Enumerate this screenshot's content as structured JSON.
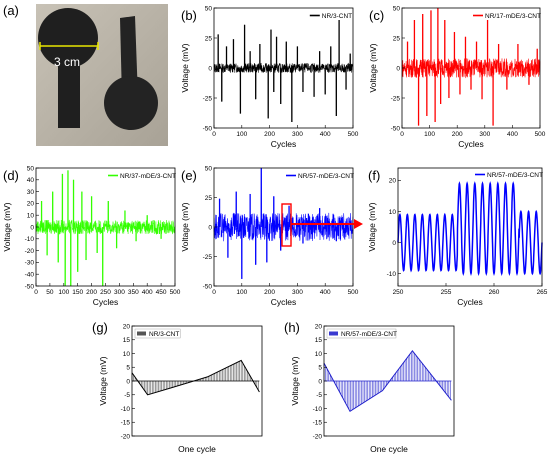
{
  "figure": {
    "photo": {
      "letter": "(a)",
      "scale_text": "3 cm",
      "colors": {
        "background": "#b9b3a7",
        "object": "#1f1f1f",
        "scale_line": "#e9e600"
      }
    },
    "signals": [
      {
        "letter": "(b)",
        "legend": "NR/3-CNT",
        "color": "#000000",
        "xlabel": "Cycles",
        "ylabel": "Voltage (mV)",
        "xlim": [
          0,
          500
        ],
        "ylim": [
          -50,
          50
        ],
        "xticks": [
          "0",
          "100",
          "200",
          "300",
          "400",
          "500"
        ],
        "yticks": [
          "-50",
          "-25",
          "0",
          "25",
          "50"
        ],
        "noise_amplitude": 4,
        "spikes": [
          [
            15,
            28
          ],
          [
            28,
            -28
          ],
          [
            45,
            18
          ],
          [
            70,
            24
          ],
          [
            95,
            -38
          ],
          [
            110,
            36
          ],
          [
            130,
            14
          ],
          [
            150,
            -26
          ],
          [
            165,
            20
          ],
          [
            195,
            -42
          ],
          [
            205,
            32
          ],
          [
            215,
            -20
          ],
          [
            225,
            26
          ],
          [
            240,
            -30
          ],
          [
            260,
            22
          ],
          [
            280,
            -45
          ],
          [
            300,
            18
          ],
          [
            320,
            -20
          ],
          [
            360,
            -24
          ],
          [
            380,
            14
          ],
          [
            400,
            -22
          ],
          [
            420,
            18
          ],
          [
            440,
            -40
          ],
          [
            450,
            44
          ],
          [
            475,
            -18
          ],
          [
            490,
            12
          ]
        ]
      },
      {
        "letter": "(c)",
        "legend": "NR/17-mDE/3-CNT",
        "color": "#ff0000",
        "xlabel": "Cycles",
        "ylabel": "Voltage (mV)",
        "xlim": [
          0,
          500
        ],
        "ylim": [
          -50,
          50
        ],
        "xticks": [
          "0",
          "100",
          "200",
          "300",
          "400",
          "500"
        ],
        "yticks": [
          "-50",
          "-25",
          "0",
          "25",
          "50"
        ],
        "noise_amplitude": 8,
        "spikes": [
          [
            20,
            22
          ],
          [
            45,
            40
          ],
          [
            60,
            -48
          ],
          [
            75,
            45
          ],
          [
            90,
            -40
          ],
          [
            105,
            48
          ],
          [
            120,
            -45
          ],
          [
            130,
            50
          ],
          [
            140,
            -30
          ],
          [
            155,
            40
          ],
          [
            170,
            -25
          ],
          [
            190,
            30
          ],
          [
            210,
            -22
          ],
          [
            230,
            26
          ],
          [
            250,
            -18
          ],
          [
            270,
            22
          ],
          [
            290,
            -26
          ],
          [
            310,
            40
          ],
          [
            330,
            -48
          ],
          [
            350,
            20
          ],
          [
            380,
            -18
          ],
          [
            420,
            20
          ],
          [
            460,
            -14
          ],
          [
            490,
            16
          ]
        ]
      },
      {
        "letter": "(d)",
        "legend": "NR/37-mDE/3-CNT",
        "color": "#33ff00",
        "xlabel": "Cycles",
        "ylabel": "Voltage (mV)",
        "xlim": [
          0,
          500
        ],
        "ylim": [
          -50,
          50
        ],
        "xticks": [
          "0",
          "50",
          "100",
          "150",
          "200",
          "250",
          "300",
          "350",
          "400",
          "450",
          "500"
        ],
        "yticks": [
          "-50",
          "-40",
          "-30",
          "-20",
          "-10",
          "0",
          "10",
          "20",
          "30",
          "40",
          "50"
        ],
        "noise_amplitude": 6,
        "spikes": [
          [
            20,
            22
          ],
          [
            40,
            -24
          ],
          [
            60,
            30
          ],
          [
            80,
            -30
          ],
          [
            95,
            45
          ],
          [
            105,
            -50
          ],
          [
            115,
            48
          ],
          [
            125,
            -50
          ],
          [
            135,
            40
          ],
          [
            150,
            -38
          ],
          [
            165,
            30
          ],
          [
            180,
            -28
          ],
          [
            200,
            26
          ],
          [
            220,
            -22
          ],
          [
            240,
            -50
          ],
          [
            260,
            22
          ],
          [
            290,
            -18
          ],
          [
            320,
            14
          ],
          [
            360,
            -12
          ],
          [
            400,
            10
          ],
          [
            450,
            -10
          ]
        ]
      },
      {
        "letter": "(e)",
        "legend": "NR/57-mDE/3-CNT",
        "color": "#0000ff",
        "xlabel": "Cycles",
        "ylabel": "Voltage (mV)",
        "xlim": [
          0,
          500
        ],
        "ylim": [
          -50,
          50
        ],
        "xticks": [
          "0",
          "100",
          "200",
          "300",
          "400",
          "500"
        ],
        "yticks": [
          "-50",
          "-25",
          "0",
          "25",
          "50"
        ],
        "noise_amplitude": 12,
        "spikes": [
          [
            20,
            24
          ],
          [
            50,
            -26
          ],
          [
            80,
            30
          ],
          [
            100,
            -44
          ],
          [
            130,
            28
          ],
          [
            150,
            -32
          ],
          [
            170,
            50
          ],
          [
            190,
            -30
          ],
          [
            215,
            26
          ],
          [
            240,
            -20
          ],
          [
            270,
            18
          ],
          [
            320,
            -14
          ],
          [
            380,
            16
          ],
          [
            440,
            -12
          ]
        ]
      }
    ],
    "zoom": {
      "letter": "(f)",
      "legend": "NR/57-mDE/3-CNT",
      "color": "#0000ff",
      "xlabel": "Cycles",
      "ylabel": "Voltage (mV)",
      "xlim": [
        250,
        265
      ],
      "ylim": [
        -14,
        24
      ],
      "xticks": [
        "250",
        "255",
        "260",
        "265"
      ],
      "xtick_values": [
        250,
        255,
        260,
        265
      ],
      "yticks": [
        "-10",
        "0",
        "10",
        "20"
      ],
      "ytick_values": [
        -10,
        0,
        10,
        20
      ],
      "segments": [
        {
          "start": 250,
          "end": 256.2,
          "period": 0.78,
          "center": 0,
          "amp": 9
        },
        {
          "start": 256.2,
          "end": 262.6,
          "period": 0.8,
          "center": 4.5,
          "amp": 14.5
        },
        {
          "start": 262.6,
          "end": 265,
          "period": 0.8,
          "center": 0,
          "amp": 10
        }
      ],
      "highlight_box": {
        "x_range": [
          250,
          265
        ]
      },
      "highlight_color": "#ff0000"
    },
    "cycles": [
      {
        "letter": "(g)",
        "legend": "NR/3-CNT",
        "color": "#000000",
        "fill": "#555555",
        "xlabel": "One cycle",
        "ylabel": "Voltage (mV)",
        "ylim": [
          -20,
          20
        ],
        "yticks": [
          "20",
          "15",
          "10",
          "5",
          "0",
          "-5",
          "-10",
          "-15",
          "-20"
        ],
        "curve": [
          [
            0,
            3
          ],
          [
            0.12,
            -5
          ],
          [
            0.3,
            -2.5
          ],
          [
            0.58,
            1.5
          ],
          [
            0.84,
            7.5
          ],
          [
            0.98,
            -4
          ]
        ]
      },
      {
        "letter": "(h)",
        "legend": "NR/57-mDE/3-CNT",
        "color": "#2222cc",
        "fill": "#3a3ad0",
        "xlabel": "One cycle",
        "ylabel": "Voltage (mV)",
        "ylim": [
          -20,
          20
        ],
        "yticks": [
          "20",
          "15",
          "10",
          "5",
          "0",
          "-5",
          "-10",
          "-15",
          "-20"
        ],
        "curve": [
          [
            0,
            6.5
          ],
          [
            0.2,
            -11
          ],
          [
            0.45,
            -3.5
          ],
          [
            0.68,
            11
          ],
          [
            0.98,
            -7
          ]
        ]
      }
    ]
  }
}
